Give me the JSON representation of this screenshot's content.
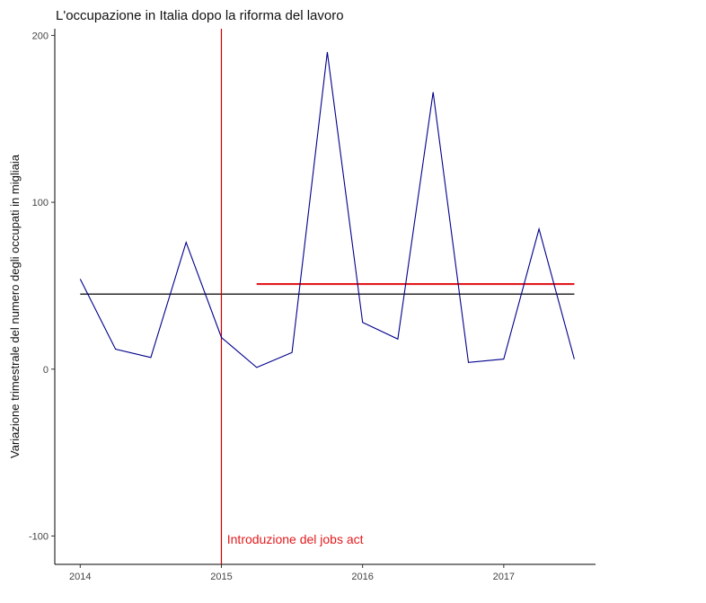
{
  "chart_data": {
    "type": "line",
    "title": "L'occupazione in Italia dopo la riforma del lavoro",
    "xlabel": "",
    "ylabel": "Variazione trimestrale del numero degli occupati in migliaia",
    "xlim": [
      2013.82,
      2017.65
    ],
    "ylim": [
      -117,
      204
    ],
    "x_ticks": [
      {
        "value": 2014,
        "label": "2014"
      },
      {
        "value": 2015,
        "label": "2015"
      },
      {
        "value": 2016,
        "label": "2016"
      },
      {
        "value": 2017,
        "label": "2017"
      }
    ],
    "y_ticks": [
      {
        "value": -100,
        "label": "-100"
      },
      {
        "value": 0,
        "label": "0"
      },
      {
        "value": 100,
        "label": "100"
      },
      {
        "value": 200,
        "label": "200"
      }
    ],
    "grid": false,
    "series": [
      {
        "color": "#00008b",
        "x": [
          2014.0,
          2014.25,
          2014.5,
          2014.75,
          2015.0,
          2015.25,
          2015.5,
          2015.75,
          2016.0,
          2016.25,
          2016.5,
          2016.75,
          2017.0,
          2017.25,
          2017.5
        ],
        "y": [
          54,
          12,
          7,
          76,
          19,
          1,
          10,
          190,
          28,
          18,
          166,
          4,
          6,
          84,
          6
        ]
      }
    ],
    "reference_lines": [
      {
        "kind": "horizontal",
        "y": 45,
        "x_from": 2014.0,
        "x_to": 2017.5,
        "color": "#000000"
      },
      {
        "kind": "horizontal",
        "y": 51,
        "x_from": 2015.25,
        "x_to": 2017.5,
        "color": "#e31a1c"
      },
      {
        "kind": "vertical",
        "x": 2015.0,
        "color": "#cc0000"
      }
    ],
    "annotations": [
      {
        "text": "Introduzione del jobs act",
        "x": 2015.04,
        "y": -102,
        "color": "#e31a1c"
      }
    ]
  }
}
